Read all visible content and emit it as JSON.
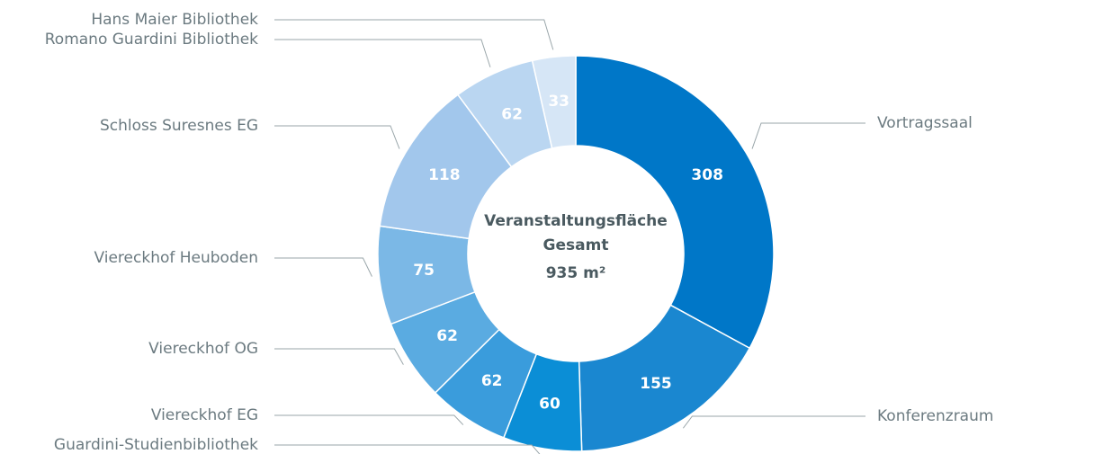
{
  "chart_data": {
    "type": "donut",
    "categories": [
      "Vortragssaal",
      "Konferenzraum",
      "Guardini-Studienbibliothek",
      "Viereckhof EG",
      "Viereckhof OG",
      "Viereckhof Heuboden",
      "Schloss Suresnes EG",
      "Romano Guardini Bibliothek",
      "Hans Maier Bibliothek"
    ],
    "values": [
      308,
      155,
      60,
      62,
      62,
      75,
      118,
      62,
      33
    ],
    "colors": [
      "#0077c8",
      "#1a87d0",
      "#0b8ed6",
      "#3a9cdc",
      "#5aabe1",
      "#7bb8e6",
      "#a2c7ec",
      "#bad6f1",
      "#d6e6f6"
    ],
    "center_label": [
      "Veranstaltungsfläche",
      "Gesamt",
      "935 m²"
    ]
  }
}
